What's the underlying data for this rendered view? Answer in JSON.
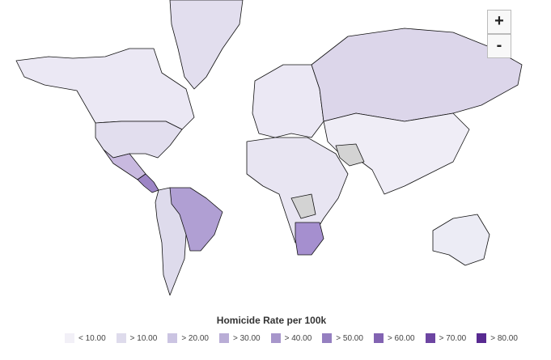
{
  "zoom_controls": {
    "zoom_in": "+",
    "zoom_out": "-"
  },
  "legend": {
    "title": "Homicide Rate per 100k",
    "items": [
      {
        "label": "< 10.00",
        "color": "#f2f0f7"
      },
      {
        "label": "> 10.00",
        "color": "#dedbec"
      },
      {
        "label": "> 20.00",
        "color": "#cbc4e2"
      },
      {
        "label": "> 30.00",
        "color": "#b9add6"
      },
      {
        "label": "> 40.00",
        "color": "#a796cb"
      },
      {
        "label": "> 50.00",
        "color": "#957fc0"
      },
      {
        "label": "> 60.00",
        "color": "#8263b2"
      },
      {
        "label": "> 70.00",
        "color": "#6d45a2"
      },
      {
        "label": "> 80.00",
        "color": "#582a91"
      }
    ]
  }
}
